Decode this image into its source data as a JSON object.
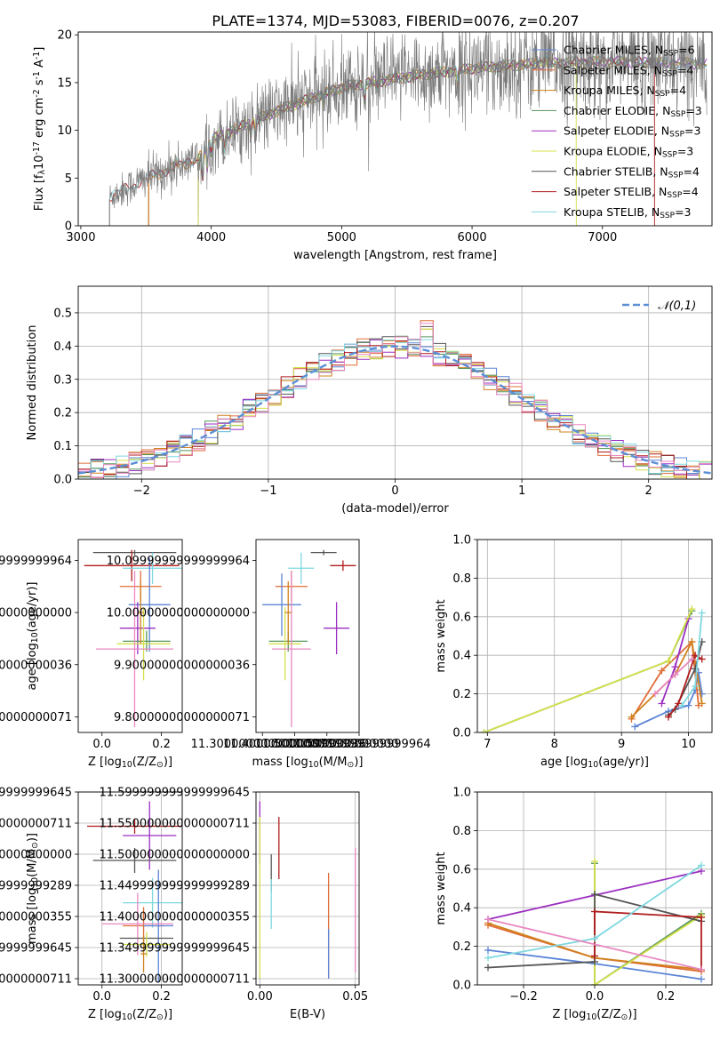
{
  "title": "PLATE=1374, MJD=53083, FIBERID=0076, z=0.207",
  "colors": {
    "Chabrier MILES": "#5b84d6",
    "Salpeter MILES": "#e06c36",
    "Kroupa MILES": "#d0811e",
    "Chabrier ELODIE": "#55955a",
    "Salpeter ELODIE": "#9b2fc0",
    "Kroupa ELODIE": "#d4e04a",
    "Chabrier STELIB": "#555555",
    "Salpeter STELIB": "#b01c1c",
    "Kroupa STELIB": "#7fd8e0",
    "pink": "#e888c0",
    "normal_curve": "#5b8fd6"
  },
  "chart_data": [
    {
      "id": "spectrum",
      "type": "line",
      "title": "PLATE=1374, MJD=53083, FIBERID=0076, z=0.207",
      "xlabel": "wavelength [Angstrom, rest frame]",
      "ylabel": "Flux [f$_\\lambda$10$^{-17}$ erg cm$^{-2}$ s$^{-1}$ A$^{-1}$]",
      "xlim": [
        2980,
        7840
      ],
      "ylim": [
        0,
        20.3
      ],
      "xticks": [
        3000,
        4000,
        5000,
        6000,
        7000
      ],
      "yticks": [
        0,
        5,
        10,
        15,
        20
      ],
      "legend_position": "upper right",
      "legend": [
        {
          "label": "Chabrier MILES, N$_{SSP}$=6",
          "color_key": "Chabrier MILES"
        },
        {
          "label": "Salpeter MILES, N$_{SSP}$=4",
          "color_key": "Salpeter MILES"
        },
        {
          "label": "Kroupa MILES, N$_{SSP}$=4",
          "color_key": "Kroupa MILES"
        },
        {
          "label": "Chabrier ELODIE, N$_{SSP}$=3",
          "color_key": "Chabrier ELODIE"
        },
        {
          "label": "Salpeter ELODIE, N$_{SSP}$=3",
          "color_key": "Salpeter ELODIE"
        },
        {
          "label": "Kroupa ELODIE, N$_{SSP}$=3",
          "color_key": "Kroupa ELODIE"
        },
        {
          "label": "Chabrier STELIB, N$_{SSP}$=4",
          "color_key": "Chabrier STELIB"
        },
        {
          "label": "Salpeter STELIB, N$_{SSP}$=4",
          "color_key": "Salpeter STELIB"
        },
        {
          "label": "Kroupa STELIB, N$_{SSP}$=3",
          "color_key": "Kroupa STELIB"
        }
      ],
      "data_range_x": [
        3220,
        7800
      ],
      "model_starts": {
        "Chabrier MILES": 3520,
        "Salpeter MILES": 3520,
        "Kroupa MILES": 3520,
        "Chabrier ELODIE": 3900,
        "Salpeter ELODIE": 3900,
        "Kroupa ELODIE": 3900,
        "Chabrier STELIB": 3220,
        "Salpeter STELIB": 3220,
        "Kroupa STELIB": 3220
      },
      "model_ends": {
        "Salpeter STELIB": 7400,
        "Kroupa ELODIE": 6800
      },
      "continuum": {
        "x": [
          3220,
          3500,
          3900,
          4000,
          4500,
          5000,
          5500,
          6000,
          6500,
          7000,
          7800
        ],
        "y": [
          3.0,
          5.0,
          7.0,
          9.0,
          12.0,
          14.5,
          15.6,
          16.5,
          17.0,
          17.2,
          17.0
        ]
      }
    },
    {
      "id": "residuals",
      "type": "histogram",
      "xlabel": "(data-model)/error",
      "ylabel": "Normed distribution",
      "xlim": [
        -2.5,
        2.5
      ],
      "ylim": [
        0,
        0.58
      ],
      "xticks": [
        -2,
        -1,
        0,
        1,
        2
      ],
      "yticks": [
        0,
        0.1,
        0.2,
        0.3,
        0.4,
        0.5
      ],
      "grid": true,
      "legend_position": "upper right",
      "legend": [
        {
          "label": "$\\mathcal{N}(0,1)$",
          "color_key": "normal_curve",
          "style": "dashed"
        }
      ],
      "bin_width": 0.1,
      "normal": {
        "mean": 0,
        "sigma": 1
      }
    },
    {
      "id": "age_vs_Z",
      "type": "errorbar",
      "xlabel": "Z [log$_{10}$(Z/Z$_\\odot$)]",
      "ylabel": "age  [log$_{10}$(age/yr)]",
      "xlim": [
        -0.08,
        0.27
      ],
      "ylim": [
        9.77,
        10.14
      ],
      "xticks": [
        0.0,
        0.2
      ],
      "yticks": [
        9.8,
        9.9,
        10.0,
        10.1
      ],
      "points": [
        {
          "color_key": "Chabrier STELIB",
          "x": 0.11,
          "y": 10.115,
          "xerr": 0.14,
          "yerr": 0.005
        },
        {
          "color_key": "Salpeter STELIB",
          "x": 0.1,
          "y": 10.09,
          "xerr": 0.16,
          "yerr": 0.03
        },
        {
          "color_key": "Kroupa STELIB",
          "x": 0.17,
          "y": 10.085,
          "xerr": 0.1,
          "yerr": 0.03
        },
        {
          "color_key": "Salpeter MILES",
          "x": 0.13,
          "y": 10.05,
          "xerr": 0.07,
          "yerr": 0.03
        },
        {
          "color_key": "Chabrier MILES",
          "x": 0.16,
          "y": 10.015,
          "xerr": 0.07,
          "yerr": 0.09
        },
        {
          "color_key": "Salpeter ELODIE",
          "x": 0.12,
          "y": 9.97,
          "xerr": 0.06,
          "yerr": 0.05
        },
        {
          "color_key": "Chabrier ELODIE",
          "x": 0.15,
          "y": 9.945,
          "xerr": 0.08,
          "yerr": 0.02
        },
        {
          "color_key": "Kroupa ELODIE",
          "x": 0.14,
          "y": 9.94,
          "xerr": 0.09,
          "yerr": 0.07
        },
        {
          "color_key": "pink",
          "x": 0.11,
          "y": 9.93,
          "xerr": 0.13,
          "yerr": 0.15
        },
        {
          "color_key": "Kroupa MILES",
          "x": 0.13,
          "y": 10.0,
          "xerr": 0.01,
          "yerr": 0.06
        }
      ]
    },
    {
      "id": "age_vs_mass",
      "type": "errorbar",
      "xlabel": "mass [log$_{10}$(M/M$_\\odot$)]",
      "ylabel": "",
      "xlim": [
        11.28,
        11.6
      ],
      "ylim": [
        9.77,
        10.14
      ],
      "xticks": [
        11.3,
        11.4,
        11.5,
        11.6
      ],
      "yticks": [
        9.8,
        9.9,
        10.0,
        10.1
      ],
      "points": [
        {
          "color_key": "Chabrier STELIB",
          "x": 11.49,
          "y": 10.115,
          "xerr": 0.04,
          "yerr": 0.005
        },
        {
          "color_key": "Salpeter STELIB",
          "x": 11.55,
          "y": 10.09,
          "xerr": 0.04,
          "yerr": 0.01
        },
        {
          "color_key": "Kroupa STELIB",
          "x": 11.42,
          "y": 10.085,
          "xerr": 0.04,
          "yerr": 0.03
        },
        {
          "color_key": "Salpeter MILES",
          "x": 11.39,
          "y": 10.05,
          "xerr": 0.05,
          "yerr": 0.03
        },
        {
          "color_key": "Chabrier MILES",
          "x": 11.36,
          "y": 10.015,
          "xerr": 0.06,
          "yerr": 0.06
        },
        {
          "color_key": "Salpeter ELODIE",
          "x": 11.53,
          "y": 9.97,
          "xerr": 0.04,
          "yerr": 0.05
        },
        {
          "color_key": "Chabrier ELODIE",
          "x": 11.38,
          "y": 9.945,
          "xerr": 0.06,
          "yerr": 0.02
        },
        {
          "color_key": "Kroupa ELODIE",
          "x": 11.37,
          "y": 9.94,
          "xerr": 0.05,
          "yerr": 0.07
        },
        {
          "color_key": "pink",
          "x": 11.39,
          "y": 9.93,
          "xerr": 0.06,
          "yerr": 0.15
        },
        {
          "color_key": "Kroupa MILES",
          "x": 11.38,
          "y": 10.0,
          "xerr": 0.01,
          "yerr": 0.06
        }
      ]
    },
    {
      "id": "massweight_vs_age",
      "type": "line",
      "xlabel": "age  [log$_{10}$(age/yr)]",
      "ylabel": "mass weight",
      "xlim": [
        6.85,
        10.35
      ],
      "ylim": [
        0,
        1.0
      ],
      "xticks": [
        7,
        8,
        9,
        10
      ],
      "yticks": [
        0.0,
        0.2,
        0.4,
        0.6,
        0.8,
        1.0
      ],
      "grid": true,
      "series": [
        {
          "color_key": "Chabrier MILES",
          "x": [
            9.2,
            9.7,
            10.0,
            10.1,
            10.15,
            10.2
          ],
          "y": [
            0.03,
            0.11,
            0.14,
            0.22,
            0.31,
            0.2
          ]
        },
        {
          "color_key": "Salpeter MILES",
          "x": [
            9.15,
            9.6,
            10.05,
            10.15
          ],
          "y": [
            0.07,
            0.32,
            0.47,
            0.14
          ]
        },
        {
          "color_key": "Kroupa MILES",
          "x": [
            9.15,
            9.8,
            10.05,
            10.2
          ],
          "y": [
            0.08,
            0.3,
            0.47,
            0.15
          ]
        },
        {
          "color_key": "Chabrier ELODIE",
          "x": [
            6.95,
            9.7,
            10.05
          ],
          "y": [
            0.0,
            0.37,
            0.63
          ]
        },
        {
          "color_key": "Salpeter ELODIE",
          "x": [
            9.6,
            9.8,
            10.0
          ],
          "y": [
            0.15,
            0.34,
            0.59
          ]
        },
        {
          "color_key": "Kroupa ELODIE",
          "x": [
            6.95,
            9.7,
            10.05
          ],
          "y": [
            0.0,
            0.37,
            0.64
          ]
        },
        {
          "color_key": "Chabrier STELIB",
          "x": [
            9.7,
            9.8,
            10.1,
            10.2
          ],
          "y": [
            0.09,
            0.12,
            0.33,
            0.47
          ]
        },
        {
          "color_key": "Salpeter STELIB",
          "x": [
            9.7,
            9.85,
            10.1,
            10.2
          ],
          "y": [
            0.08,
            0.15,
            0.4,
            0.38
          ]
        },
        {
          "color_key": "Kroupa STELIB",
          "x": [
            9.9,
            10.1,
            10.2
          ],
          "y": [
            0.14,
            0.24,
            0.62
          ]
        },
        {
          "color_key": "pink",
          "x": [
            9.5,
            9.8,
            10.05
          ],
          "y": [
            0.2,
            0.3,
            0.38
          ]
        }
      ]
    },
    {
      "id": "mass_vs_Z",
      "type": "errorbar",
      "xlabel": "Z [log$_{10}$(Z/Z$_\\odot$)]",
      "ylabel": "mass [log$_{10}$(M/M$_\\odot$)]",
      "xlim": [
        -0.08,
        0.27
      ],
      "ylim": [
        11.29,
        11.6
      ],
      "xticks": [
        0.0,
        0.2
      ],
      "yticks": [
        11.3,
        11.35,
        11.4,
        11.45,
        11.5,
        11.55,
        11.6
      ],
      "grid": true,
      "points": [
        {
          "color_key": "Salpeter STELIB",
          "x": 0.11,
          "y": 11.545,
          "xerr": 0.16,
          "yerr": 0.012
        },
        {
          "color_key": "Salpeter ELODIE",
          "x": 0.16,
          "y": 11.53,
          "xerr": 0.09,
          "yerr": 0.055
        },
        {
          "color_key": "Chabrier STELIB",
          "x": 0.11,
          "y": 11.49,
          "xerr": 0.14,
          "yerr": 0.02
        },
        {
          "color_key": "Kroupa STELIB",
          "x": 0.17,
          "y": 11.422,
          "xerr": 0.1,
          "yerr": 0.04
        },
        {
          "color_key": "Salpeter MILES",
          "x": 0.14,
          "y": 11.385,
          "xerr": 0.07,
          "yerr": 0.03
        },
        {
          "color_key": "Chabrier MILES",
          "x": 0.19,
          "y": 11.385,
          "xerr": 0.05,
          "yerr": 0.09
        },
        {
          "color_key": "pink",
          "x": 0.12,
          "y": 11.388,
          "xerr": 0.12,
          "yerr": 0.05
        },
        {
          "color_key": "Chabrier STELIB",
          "x": 0.15,
          "y": 11.365,
          "xerr": 0.09,
          "yerr": 0.0
        },
        {
          "color_key": "Kroupa ELODIE",
          "x": 0.15,
          "y": 11.355,
          "xerr": 0.08,
          "yerr": 0.02
        },
        {
          "color_key": "Kroupa MILES",
          "x": 0.14,
          "y": 11.34,
          "xerr": 0.01,
          "yerr": 0.03
        }
      ]
    },
    {
      "id": "mass_vs_EBV",
      "type": "errorbar",
      "xlabel": "E(B-V)",
      "ylabel": "",
      "xlim": [
        -0.002,
        0.052
      ],
      "ylim": [
        11.29,
        11.6
      ],
      "xticks": [
        0.0,
        0.05
      ],
      "yticks": [
        11.3,
        11.35,
        11.4,
        11.45,
        11.5,
        11.55,
        11.6
      ],
      "grid": true,
      "points": [
        {
          "color_key": "Salpeter ELODIE",
          "x": 0.0,
          "y": 11.535,
          "yerr": 0.05
        },
        {
          "color_key": "Kroupa ELODIE",
          "x": 0.0,
          "y": 11.43,
          "yerr": 0.13
        },
        {
          "color_key": "Chabrier STELIB",
          "x": 0.006,
          "y": 11.47,
          "yerr": 0.03
        },
        {
          "color_key": "Kroupa STELIB",
          "x": 0.006,
          "y": 11.42,
          "yerr": 0.04
        },
        {
          "color_key": "Salpeter STELIB",
          "x": 0.01,
          "y": 11.51,
          "yerr": 0.05
        },
        {
          "color_key": "Salpeter MILES",
          "x": 0.036,
          "y": 11.385,
          "yerr": 0.085
        },
        {
          "color_key": "Chabrier MILES",
          "x": 0.036,
          "y": 11.34,
          "yerr": 0.04
        },
        {
          "color_key": "pink",
          "x": 0.05,
          "y": 11.41,
          "yerr": 0.1
        }
      ]
    },
    {
      "id": "massweight_vs_Z",
      "type": "line",
      "xlabel": "Z [log$_{10}$(Z/Z$_\\odot$)]",
      "ylabel": "mass weight",
      "xlim": [
        -0.33,
        0.33
      ],
      "ylim": [
        0,
        1.0
      ],
      "xticks": [
        -0.2,
        0.0,
        0.2
      ],
      "yticks": [
        0.0,
        0.2,
        0.4,
        0.6,
        0.8,
        1.0
      ],
      "grid": true,
      "series": [
        {
          "color_key": "Chabrier MILES",
          "x": [
            -0.3,
            0.0,
            0.3
          ],
          "y": [
            0.18,
            0.11,
            0.03
          ]
        },
        {
          "color_key": "Salpeter MILES",
          "x": [
            -0.3,
            0.0,
            0.3
          ],
          "y": [
            0.31,
            0.14,
            0.07
          ]
        },
        {
          "color_key": "Kroupa MILES",
          "x": [
            -0.3,
            0.0,
            0.3
          ],
          "y": [
            0.32,
            0.14,
            0.08
          ]
        },
        {
          "color_key": "Chabrier ELODIE",
          "x": [
            0.0,
            0.0,
            0.3
          ],
          "y": [
            0.63,
            0.0,
            0.37
          ]
        },
        {
          "color_key": "Salpeter ELODIE",
          "x": [
            -0.3,
            0.3
          ],
          "y": [
            0.34,
            0.59
          ]
        },
        {
          "color_key": "Kroupa ELODIE",
          "x": [
            0.0,
            0.0,
            0.3
          ],
          "y": [
            0.64,
            0.0,
            0.36
          ]
        },
        {
          "color_key": "Chabrier STELIB",
          "x": [
            -0.3,
            0.0,
            0.0,
            0.3
          ],
          "y": [
            0.09,
            0.12,
            0.47,
            0.33
          ]
        },
        {
          "color_key": "Salpeter STELIB",
          "x": [
            0.0,
            0.0,
            0.3,
            0.3
          ],
          "y": [
            0.15,
            0.38,
            0.35,
            0.08
          ]
        },
        {
          "color_key": "Kroupa STELIB",
          "x": [
            -0.3,
            0.0,
            0.3
          ],
          "y": [
            0.14,
            0.24,
            0.62
          ]
        },
        {
          "color_key": "pink",
          "x": [
            -0.3,
            0.3
          ],
          "y": [
            0.34,
            0.08
          ]
        }
      ]
    }
  ]
}
